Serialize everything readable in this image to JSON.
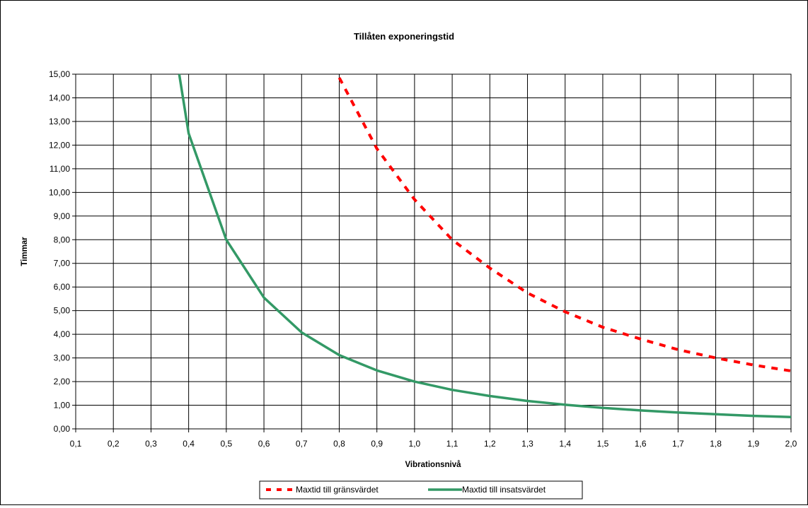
{
  "chart_data": {
    "type": "line",
    "title": "Tillåten exponeringstid",
    "xlabel": "Vibrationsnivå",
    "ylabel": "Timmar",
    "x_tick_labels": [
      "0,1",
      "0,2",
      "0,3",
      "0,4",
      "0,5",
      "0,6",
      "0,7",
      "0,8",
      "0,9",
      "1,0",
      "1,1",
      "1,2",
      "1,3",
      "1,4",
      "1,5",
      "1,6",
      "1,7",
      "1,8",
      "1,9",
      "2,0"
    ],
    "y_tick_labels": [
      "0,00",
      "1,00",
      "2,00",
      "3,00",
      "4,00",
      "5,00",
      "6,00",
      "7,00",
      "8,00",
      "9,00",
      "10,00",
      "11,00",
      "12,00",
      "13,00",
      "14,00",
      "15,00"
    ],
    "xlim": [
      0.1,
      2.0
    ],
    "ylim": [
      0,
      15
    ],
    "grid": true,
    "legend_position": "bottom",
    "series": [
      {
        "name": "Maxtid till gränsvärdet",
        "color": "#ff0000",
        "style": "dashed",
        "x": [
          0.8,
          0.9,
          1.0,
          1.1,
          1.2,
          1.3,
          1.4,
          1.5,
          1.6,
          1.7,
          1.8,
          1.9,
          2.0
        ],
        "values": [
          14.85,
          11.85,
          9.7,
          8.0,
          6.8,
          5.75,
          4.95,
          4.3,
          3.8,
          3.35,
          3.0,
          2.7,
          2.45
        ]
      },
      {
        "name": "Maxtid till insatsvärdet",
        "color": "#339966",
        "style": "solid",
        "x": [
          0.375,
          0.4,
          0.5,
          0.6,
          0.7,
          0.8,
          0.9,
          1.0,
          1.1,
          1.2,
          1.3,
          1.4,
          1.5,
          1.6,
          1.7,
          1.8,
          1.9,
          2.0
        ],
        "values": [
          15.0,
          12.5,
          8.0,
          5.55,
          4.08,
          3.12,
          2.47,
          2.0,
          1.65,
          1.39,
          1.18,
          1.02,
          0.89,
          0.78,
          0.69,
          0.62,
          0.55,
          0.5
        ]
      }
    ]
  }
}
